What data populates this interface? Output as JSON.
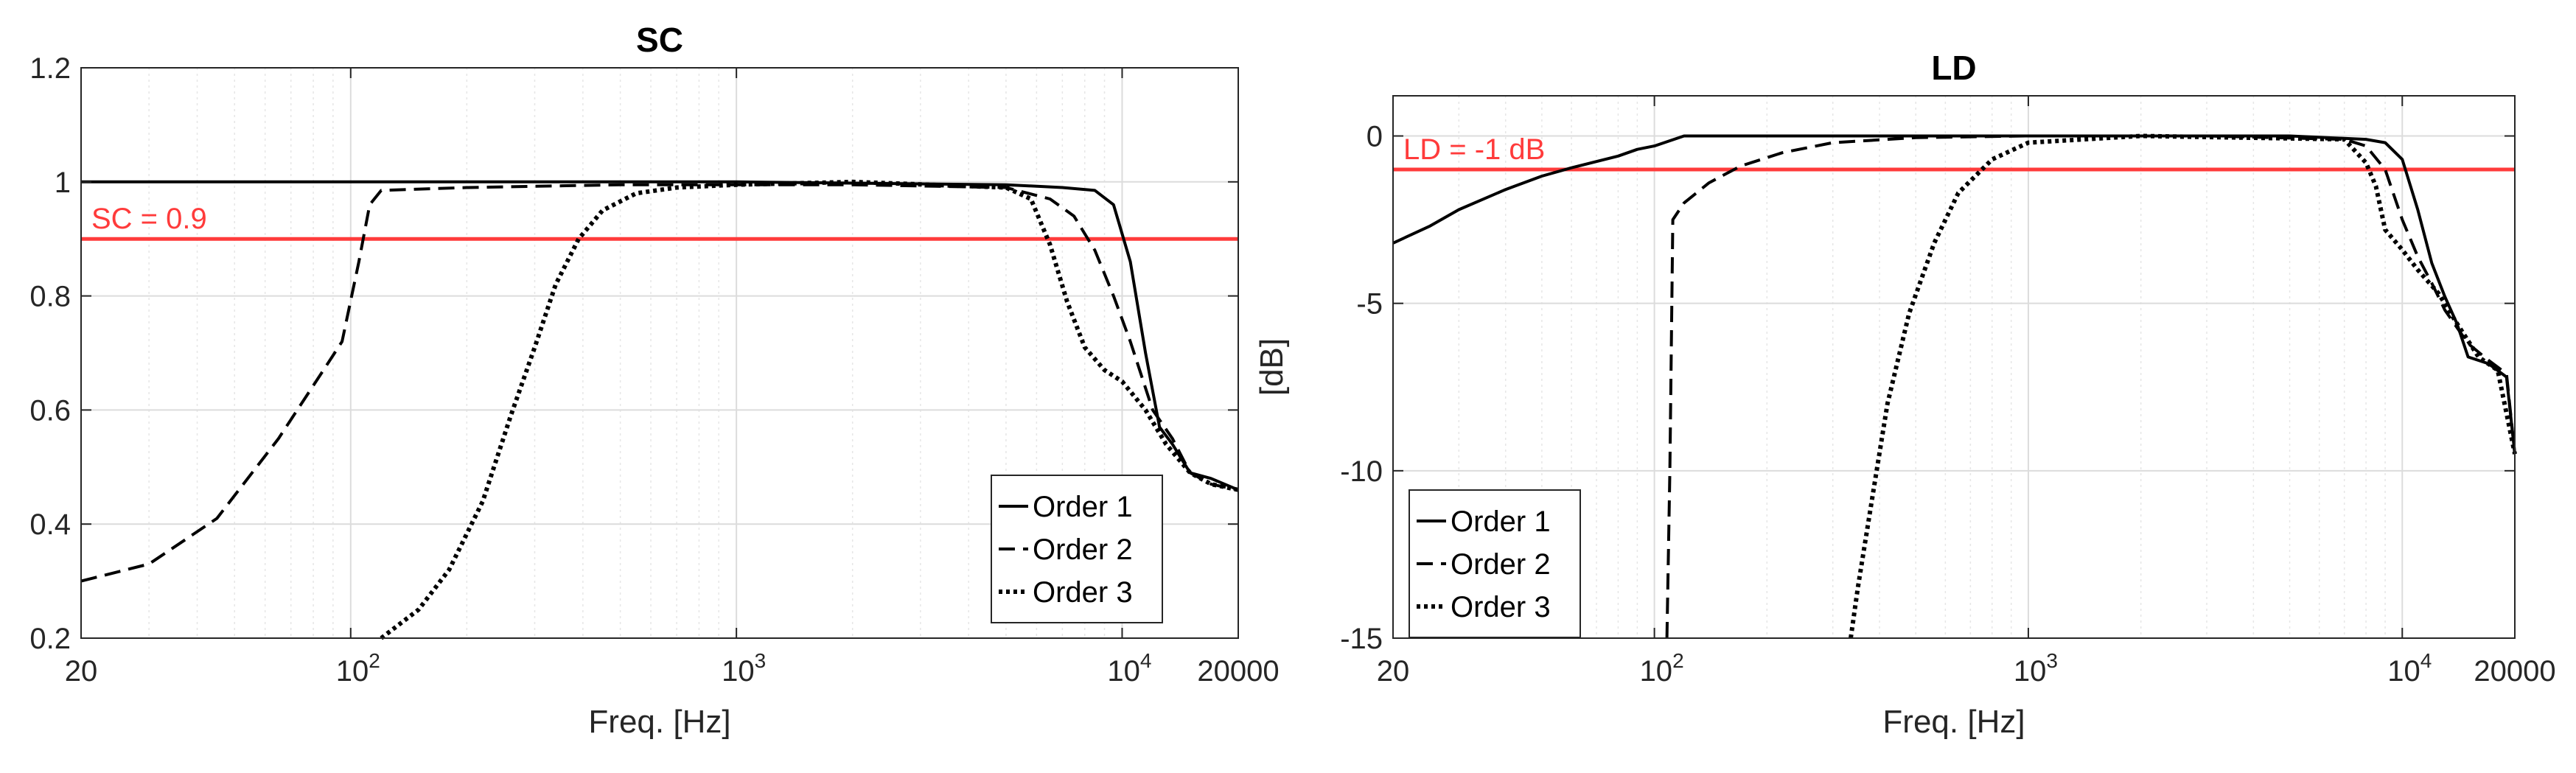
{
  "chart_data": [
    {
      "type": "line",
      "title": "SC",
      "xlabel": "Freq. [Hz]",
      "ylabel": "",
      "xscale": "log",
      "xlim": [
        20,
        20000
      ],
      "ylim": [
        0.2,
        1.2
      ],
      "xticks": [
        20,
        100,
        1000,
        10000,
        20000
      ],
      "xtick_labels": [
        {
          "base": "20",
          "exp": ""
        },
        {
          "base": "10",
          "exp": "2"
        },
        {
          "base": "10",
          "exp": "3"
        },
        {
          "base": "10",
          "exp": "4"
        },
        {
          "base": "20000",
          "exp": ""
        }
      ],
      "yticks": [
        0.2,
        0.4,
        0.6,
        0.8,
        1,
        1.2
      ],
      "ytick_labels": [
        "0.2",
        "0.4",
        "0.6",
        "0.8",
        "1",
        "1.2"
      ],
      "grid": true,
      "legend_position": "bottom-right",
      "reference_line": {
        "y": 0.9,
        "label": "SC = 0.9",
        "color": "#ff3b3b"
      },
      "series": [
        {
          "name": "Order 1",
          "style": "solid",
          "x": [
            20,
            100,
            1000,
            5000,
            7000,
            8500,
            9500,
            10500,
            11500,
            12500,
            13500,
            15000,
            17000,
            20000
          ],
          "y": [
            1.0,
            1.0,
            1.0,
            0.995,
            0.99,
            0.985,
            0.96,
            0.86,
            0.7,
            0.57,
            0.54,
            0.49,
            0.48,
            0.46
          ]
        },
        {
          "name": "Order 2",
          "style": "dashed",
          "x": [
            20,
            30,
            45,
            65,
            85,
            95,
            105,
            112,
            120,
            200,
            500,
            1000,
            2000,
            5000,
            6500,
            7500,
            8500,
            9500,
            10500,
            12000,
            13500,
            15000,
            17000,
            20000
          ],
          "y": [
            0.3,
            0.33,
            0.41,
            0.55,
            0.67,
            0.72,
            0.86,
            0.96,
            0.985,
            0.99,
            0.995,
            0.995,
            0.995,
            0.99,
            0.97,
            0.94,
            0.88,
            0.8,
            0.72,
            0.6,
            0.55,
            0.49,
            0.47,
            0.46
          ]
        },
        {
          "name": "Order 3",
          "style": "dotted",
          "x": [
            120,
            150,
            180,
            220,
            260,
            300,
            340,
            390,
            450,
            550,
            700,
            1000,
            2000,
            5000,
            5800,
            6500,
            7200,
            8000,
            9000,
            10000,
            11500,
            13000,
            15000,
            17000,
            20000
          ],
          "y": [
            0.2,
            0.25,
            0.32,
            0.44,
            0.59,
            0.71,
            0.82,
            0.9,
            0.95,
            0.98,
            0.99,
            0.995,
            1.0,
            0.99,
            0.97,
            0.89,
            0.79,
            0.71,
            0.67,
            0.65,
            0.6,
            0.54,
            0.49,
            0.47,
            0.46
          ]
        }
      ]
    },
    {
      "type": "line",
      "title": "LD",
      "xlabel": "Freq. [Hz]",
      "ylabel": "[dB]",
      "xscale": "log",
      "xlim": [
        20,
        20000
      ],
      "ylim": [
        -15,
        1.2
      ],
      "xticks": [
        20,
        100,
        1000,
        10000,
        20000
      ],
      "xtick_labels": [
        {
          "base": "20",
          "exp": ""
        },
        {
          "base": "10",
          "exp": "2"
        },
        {
          "base": "10",
          "exp": "3"
        },
        {
          "base": "10",
          "exp": "4"
        },
        {
          "base": "20000",
          "exp": ""
        }
      ],
      "yticks": [
        -15,
        -10,
        -5,
        0
      ],
      "ytick_labels": [
        "-15",
        "-10",
        "-5",
        "0"
      ],
      "grid": true,
      "legend_position": "bottom-left",
      "reference_line": {
        "y": -1,
        "label": "LD = -1 dB",
        "color": "#ff3b3b"
      },
      "series": [
        {
          "name": "Order 1",
          "style": "solid",
          "x": [
            20,
            25,
            30,
            40,
            50,
            60,
            80,
            90,
            100,
            120,
            200,
            1000,
            5000,
            8000,
            9000,
            10000,
            11000,
            12000,
            13000,
            14000,
            15000,
            17000,
            19000,
            20000
          ],
          "y": [
            -3.2,
            -2.7,
            -2.2,
            -1.6,
            -1.2,
            -0.95,
            -0.6,
            -0.4,
            -0.3,
            0.0,
            0.0,
            0.0,
            0.0,
            -0.1,
            -0.2,
            -0.7,
            -2.2,
            -3.8,
            -4.8,
            -5.6,
            -6.6,
            -6.8,
            -7.2,
            -9.5
          ]
        },
        {
          "name": "Order 2",
          "style": "dashed",
          "x": [
            108,
            110,
            112,
            120,
            140,
            170,
            220,
            300,
            500,
            1000,
            3000,
            7000,
            8000,
            9000,
            10000,
            11000,
            12000,
            13000,
            15000,
            17000,
            19000,
            20000
          ],
          "y": [
            -15,
            -10,
            -2.5,
            -2.0,
            -1.4,
            -0.9,
            -0.5,
            -0.2,
            -0.05,
            0.0,
            0.0,
            -0.1,
            -0.3,
            -1.0,
            -2.5,
            -3.6,
            -4.4,
            -5.2,
            -6.2,
            -6.7,
            -7.1,
            -9.5
          ]
        },
        {
          "name": "Order 3",
          "style": "dotted",
          "x": [
            335,
            350,
            380,
            420,
            480,
            560,
            650,
            800,
            1000,
            2000,
            7000,
            8000,
            8500,
            9000,
            10000,
            11000,
            12500,
            14000,
            16000,
            18000,
            20000
          ],
          "y": [
            -15,
            -13.5,
            -11,
            -8,
            -5.3,
            -3.2,
            -1.7,
            -0.7,
            -0.2,
            0.0,
            -0.1,
            -0.8,
            -1.5,
            -2.8,
            -3.4,
            -4.0,
            -4.7,
            -5.6,
            -6.6,
            -7.0,
            -9.5
          ]
        }
      ]
    }
  ]
}
